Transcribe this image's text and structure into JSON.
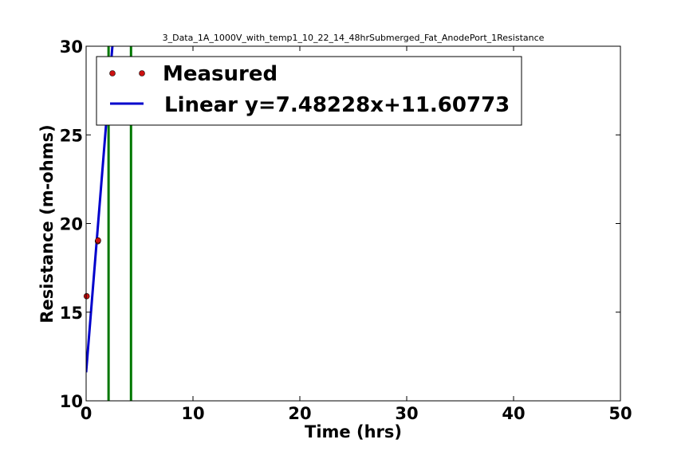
{
  "chart_data": {
    "type": "scatter",
    "title": "3_Data_1A_1000V_with_temp1_10_22_14_48hrSubmerged_Fat_AnodePort_1Resistance",
    "xlabel": "Time (hrs)",
    "ylabel": "Resistance (m-ohms)",
    "xlim": [
      0,
      50
    ],
    "ylim": [
      10,
      30
    ],
    "xticks": [
      "0",
      "10",
      "20",
      "30",
      "40",
      "50"
    ],
    "yticks": [
      "10",
      "15",
      "20",
      "25",
      "30"
    ],
    "grid": false,
    "legend_position": "top-left",
    "series": [
      {
        "name": "Measured",
        "kind": "points",
        "color": "#cc1111",
        "x": [
          0.05,
          1.1,
          1.12
        ],
        "y": [
          15.9,
          19.0,
          19.05
        ]
      },
      {
        "name": "Linear y=7.48228x+11.60773",
        "kind": "line",
        "color": "#0000cc",
        "slope": 7.48228,
        "intercept": 11.60773
      }
    ],
    "vlines": {
      "color": "#007700",
      "x": [
        2.1,
        4.2
      ]
    }
  }
}
